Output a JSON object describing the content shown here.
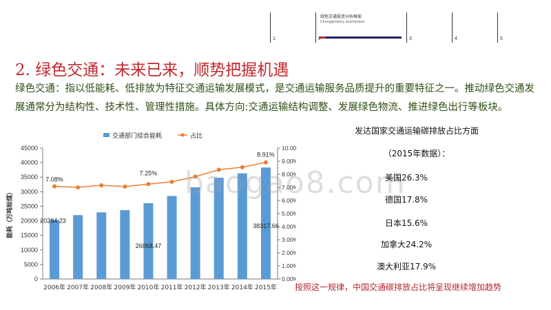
{
  "nav": {
    "cells": [
      "1",
      "2",
      "3",
      "4",
      "5"
    ],
    "active_title": "绿色交通投资分析框架",
    "active_subtitle": "Chongqinlatry ocementes"
  },
  "heading": "2. 绿色交通：未来已来，顺势把握机遇",
  "paragraph": "绿色交通：指以低能耗、低排放为特征交通运输发展模式，是交通运输服务品质提升的重要特征之一。推动绿色交通发展通常分为结构性、技术性、管理性措施。具体方向:交通运输结构调整、发展绿色物流、推进绿色出行等板块。",
  "right_panel": {
    "title": "发达国家交通运输碳排放占比方面",
    "subtitle": "（2015年数据）：",
    "items": [
      "美国26.3%",
      "德国17.8%",
      "日本15.6%",
      "加拿大24.2%",
      "澳大利亚17.9%"
    ],
    "note": "按照这一规律，中国交通碳排放占比将呈现继续增加趋势"
  },
  "watermark": "baogao8.com",
  "chart_data": {
    "type": "bar",
    "categories": [
      "2006年",
      "2007年",
      "2008年",
      "2009年",
      "2010年",
      "2011年",
      "2012年",
      "2013年",
      "2014年",
      "2015年"
    ],
    "series": [
      {
        "name": "交通部门综合能耗",
        "type": "bar",
        "axis": "left",
        "color": "#5b9bd5",
        "values": [
          20284.23,
          21959,
          22918,
          23692,
          26068.47,
          28536,
          31525,
          34819,
          36336,
          38317.66
        ]
      },
      {
        "name": "占比",
        "type": "line",
        "axis": "right",
        "color": "#ed7d31",
        "values": [
          7.08,
          7.0,
          7.16,
          7.06,
          7.25,
          7.43,
          7.82,
          8.35,
          8.54,
          8.91
        ]
      }
    ],
    "ylabel": "能耗（万吨标煤）",
    "ylim": [
      0,
      45000
    ],
    "yticks": [
      "0",
      "5000",
      "10000",
      "15000",
      "20000",
      "25000",
      "30000",
      "35000",
      "40000",
      "45000"
    ],
    "y2lim": [
      0,
      10
    ],
    "y2ticks": [
      "0.00%",
      "1.00%",
      "2.00%",
      "3.00%",
      "4.00%",
      "5.00%",
      "6.00%",
      "7.00%",
      "8.00%",
      "9.00%",
      "10.00%"
    ],
    "data_labels": {
      "bar": [
        "20284.23",
        "26068.47",
        "38317.66"
      ],
      "line": [
        "7.08%",
        "7.25%",
        "8.91%"
      ]
    },
    "legend_position": "top",
    "grid": false
  }
}
